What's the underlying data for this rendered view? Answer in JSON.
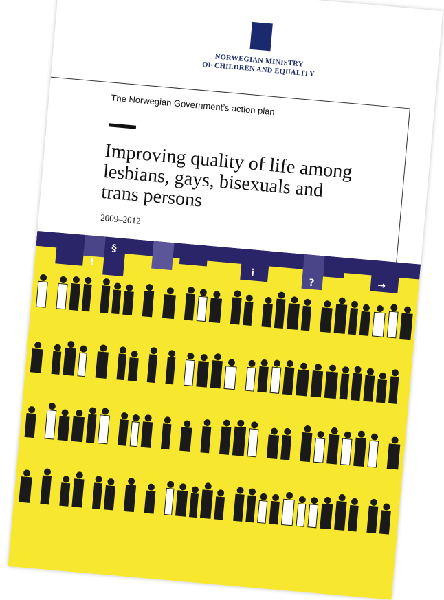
{
  "header": {
    "ministry": [
      "NORWEGIAN MINISTRY",
      "OF CHILDREN AND EQUALITY"
    ]
  },
  "subtitle": "The Norwegian Government’s action plan",
  "title": [
    "Improving quality of life among",
    "lesbians, gays, bisexuals and",
    "trans persons"
  ],
  "period": "2009–2012",
  "banner": {
    "icons": [
      "!",
      "§",
      "i",
      "?",
      "→"
    ]
  }
}
